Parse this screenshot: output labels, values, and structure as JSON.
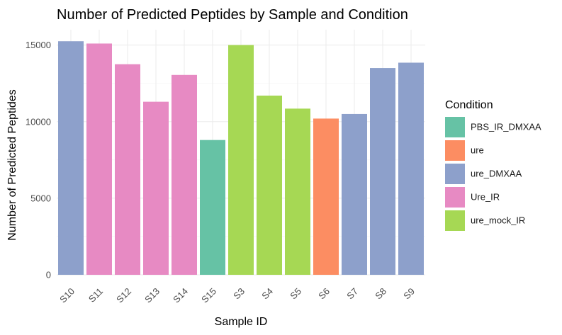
{
  "chart_data": {
    "type": "bar",
    "title": "Number of Predicted Peptides by Sample and Condition",
    "xlabel": "Sample ID",
    "ylabel": "Number of Predicted Peptides",
    "categories": [
      "S10",
      "S11",
      "S12",
      "S13",
      "S14",
      "S15",
      "S3",
      "S4",
      "S5",
      "S6",
      "S7",
      "S8",
      "S9"
    ],
    "values": [
      15250,
      15100,
      13750,
      11300,
      13050,
      8800,
      15000,
      11700,
      10850,
      10200,
      10500,
      13500,
      13850
    ],
    "bar_conditions": [
      "ure_DMXAA",
      "Ure_IR",
      "Ure_IR",
      "Ure_IR",
      "Ure_IR",
      "PBS_IR_DMXAA",
      "ure_mock_IR",
      "ure_mock_IR",
      "ure_mock_IR",
      "ure",
      "ure_DMXAA",
      "ure_DMXAA",
      "ure_DMXAA"
    ],
    "ylim": [
      0,
      16000
    ],
    "yticks": [
      0,
      5000,
      10000,
      15000
    ],
    "grid": true,
    "legend": {
      "title": "Condition",
      "position": "right",
      "entries": [
        {
          "name": "PBS_IR_DMXAA",
          "color": "#66c2a5"
        },
        {
          "name": "ure",
          "color": "#fc8d62"
        },
        {
          "name": "ure_DMXAA",
          "color": "#8da0cb"
        },
        {
          "name": "Ure_IR",
          "color": "#e78ac3"
        },
        {
          "name": "ure_mock_IR",
          "color": "#a6d854"
        }
      ]
    }
  }
}
